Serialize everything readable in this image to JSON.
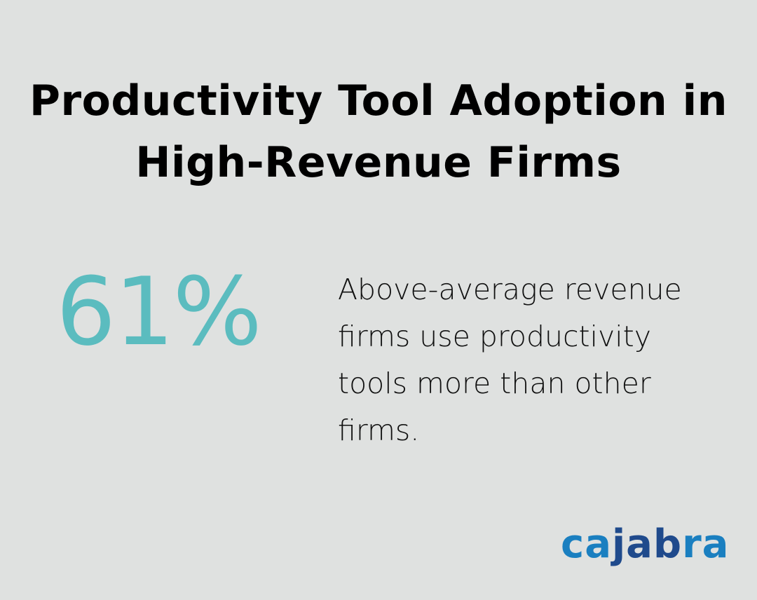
{
  "title": "Productivity Tool Adoption in High-Revenue Firms",
  "stat": {
    "value": "61%",
    "color": "#5bbcbf"
  },
  "description": "Above-average revenue firms use productivity tools more than other firms.",
  "logo": {
    "text": "cajabra",
    "part1": "ca",
    "part2": "jab",
    "part3": "ra",
    "colors": {
      "light": "#1a7fc0",
      "dark": "#1f4a8c"
    }
  }
}
